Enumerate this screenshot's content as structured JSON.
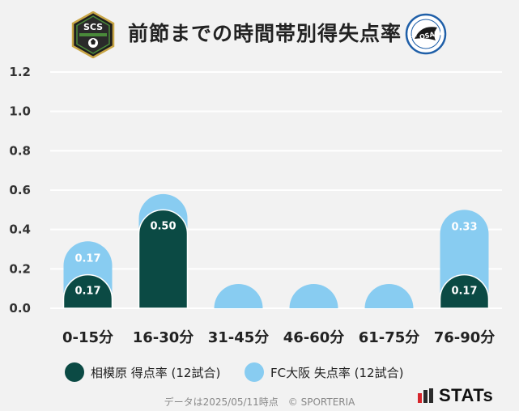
{
  "header": {
    "title": "前節までの時間帯別得失点率",
    "left_logo_text": "SCS",
    "right_logo_text": "FC OSAKA"
  },
  "chart_data": {
    "type": "bar",
    "categories": [
      "0-15分",
      "16-30分",
      "31-45分",
      "46-60分",
      "61-75分",
      "76-90分"
    ],
    "series": [
      {
        "name": "相模原 得点率 (12試合)",
        "color": "#0b4a44",
        "values": [
          0.17,
          0.5,
          0.0,
          0.0,
          0.0,
          0.17
        ]
      },
      {
        "name": "FC大阪 失点率 (12試合)",
        "color": "#88ccf1",
        "values": [
          0.17,
          0.08,
          0.08,
          0.08,
          0.08,
          0.33
        ]
      }
    ],
    "series_labels": [
      [
        "0.17",
        "0.50",
        "",
        "",
        "",
        "0.17"
      ],
      [
        "0.17",
        "",
        "",
        "",
        "",
        "0.33"
      ]
    ],
    "stacked": true,
    "yticks": [
      "0.0",
      "0.2",
      "0.4",
      "0.6",
      "0.8",
      "1.0",
      "1.2"
    ],
    "ylim": [
      0,
      1.2
    ],
    "grid": true,
    "legend_position": "bottom"
  },
  "footer": {
    "note": "データは2025/05/11時点　© SPORTERIA",
    "brand": "STATs"
  },
  "colors": {
    "background": "#f2f2f2",
    "grid": "#ffffff",
    "home": "#0b4a44",
    "away": "#88ccf1"
  }
}
